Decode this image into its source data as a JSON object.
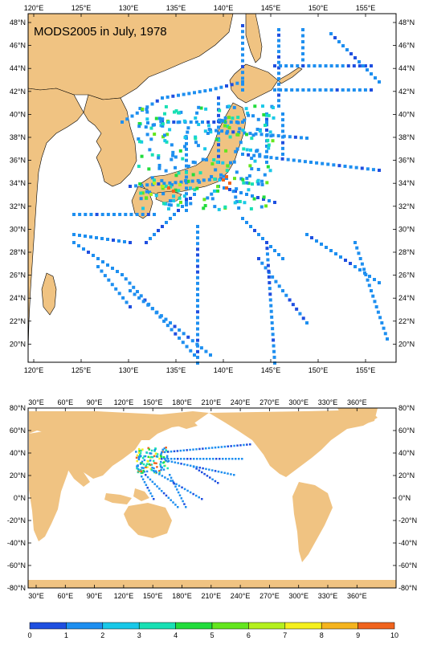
{
  "map_top": {
    "title": "MODS2005 in July, 1978",
    "lon_ticks": [
      "120°E",
      "125°E",
      "130°E",
      "135°E",
      "140°E",
      "145°E",
      "150°E",
      "155°E"
    ],
    "lat_ticks": [
      "48°N",
      "46°N",
      "44°N",
      "42°N",
      "40°N",
      "38°N",
      "36°N",
      "34°N",
      "32°N",
      "30°N",
      "28°N",
      "26°N",
      "24°N",
      "22°N",
      "20°N"
    ],
    "extent": {
      "lon": [
        119.5,
        157.5
      ],
      "lat": [
        18.5,
        49.5
      ]
    },
    "colors": {
      "land": "#f0c382",
      "ocean": "#ffffff",
      "coast": "#000000"
    }
  },
  "map_bottom": {
    "lon_ticks": [
      "30°E",
      "60°E",
      "90°E",
      "120°E",
      "150°E",
      "180°E",
      "210°E",
      "240°E",
      "270°E",
      "300°E",
      "330°E",
      "360°E"
    ],
    "lat_ticks": [
      "80°N",
      "60°N",
      "40°N",
      "20°N",
      "0°N",
      "-20°N",
      "-40°N",
      "-60°N",
      "-80°N"
    ],
    "extent": {
      "lon": [
        20,
        380
      ],
      "lat": [
        -80,
        80
      ]
    },
    "colors": {
      "land": "#f0c382",
      "ocean": "#ffffff"
    }
  },
  "colorbar": {
    "labels": [
      "0",
      "1",
      "2",
      "3",
      "4",
      "5",
      "6",
      "7",
      "8",
      "9",
      "10"
    ],
    "colors": [
      "#1f4fe0",
      "#1e8ff0",
      "#19c8e8",
      "#19e0b4",
      "#22dc3c",
      "#64e61e",
      "#b4f01e",
      "#f5f01e",
      "#f5b41e",
      "#f0641e"
    ]
  }
}
